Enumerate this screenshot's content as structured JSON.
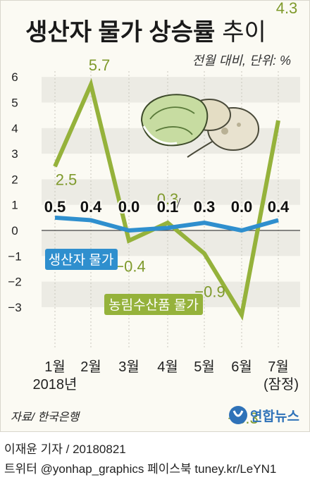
{
  "chart_data": {
    "type": "line",
    "title": "생산자 물가 상승률",
    "title_suffix": "추이",
    "unit_note": "전월 대비, 단위: %",
    "categories": [
      "1월",
      "2월",
      "3월",
      "4월",
      "5월",
      "6월",
      "7월"
    ],
    "category_sub": [
      "2018년",
      "",
      "",
      "",
      "",
      "",
      "(잠정)"
    ],
    "y_ticks": [
      "6",
      "5",
      "4",
      "3",
      "2",
      "1",
      "0",
      "−1",
      "−2",
      "−3"
    ],
    "ylim": [
      -3.5,
      6.2
    ],
    "series": [
      {
        "name": "생산자 물가",
        "color": "#2f8fce",
        "values": [
          0.5,
          0.4,
          0.0,
          0.1,
          0.3,
          0.0,
          0.4
        ],
        "labels": [
          "0.5",
          "0.4",
          "0.0",
          "0.1",
          "0.3",
          "0.0",
          "0.4"
        ]
      },
      {
        "name": "농림수산품 물가",
        "color": "#95b23b",
        "values": [
          2.5,
          5.7,
          -0.4,
          0.3,
          -0.9,
          -3.3,
          4.3
        ],
        "labels": [
          "2.5",
          "5.7",
          "−0.4",
          "0.3",
          "−0.9",
          "−3.3",
          "4.3"
        ]
      }
    ],
    "grid": "horizontal bands",
    "source": "자료/ 한국은행",
    "logo": "연합뉴스"
  },
  "footer": {
    "byline": "이재윤 기자 / 20180821",
    "sns": "트위터 @yonhap_graphics  페이스북 tuney.kr/LeYN1"
  }
}
